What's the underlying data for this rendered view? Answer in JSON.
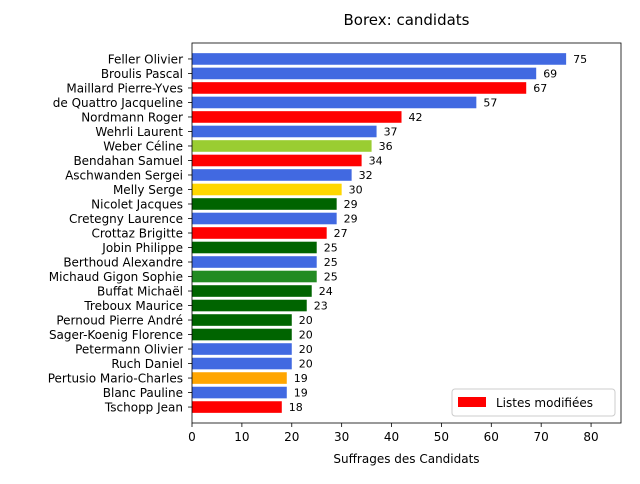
{
  "chart_data": {
    "type": "bar",
    "orientation": "horizontal",
    "title": "Borex: candidats",
    "xlabel": "Suffrages des Candidats",
    "ylabel": "",
    "xlim": [
      0,
      86
    ],
    "xticks": [
      0,
      10,
      20,
      30,
      40,
      50,
      60,
      70,
      80
    ],
    "grid": false,
    "legend": {
      "placement": "lower-right",
      "entries": [
        {
          "label": "Listes modifiées",
          "color": "#ff0000"
        }
      ]
    },
    "bars": [
      {
        "label": "Feller Olivier",
        "value": 75,
        "color": "#4169e1"
      },
      {
        "label": "Broulis Pascal",
        "value": 69,
        "color": "#4169e1"
      },
      {
        "label": "Maillard Pierre-Yves",
        "value": 67,
        "color": "#ff0000"
      },
      {
        "label": "de Quattro Jacqueline",
        "value": 57,
        "color": "#4169e1"
      },
      {
        "label": "Nordmann Roger",
        "value": 42,
        "color": "#ff0000"
      },
      {
        "label": "Wehrli Laurent",
        "value": 37,
        "color": "#4169e1"
      },
      {
        "label": "Weber Céline",
        "value": 36,
        "color": "#9acd32"
      },
      {
        "label": "Bendahan Samuel",
        "value": 34,
        "color": "#ff0000"
      },
      {
        "label": "Aschwanden Sergei",
        "value": 32,
        "color": "#4169e1"
      },
      {
        "label": "Melly Serge",
        "value": 30,
        "color": "#ffd700"
      },
      {
        "label": "Nicolet Jacques",
        "value": 29,
        "color": "#006400"
      },
      {
        "label": "Cretegny Laurence",
        "value": 29,
        "color": "#4169e1"
      },
      {
        "label": "Crottaz Brigitte",
        "value": 27,
        "color": "#ff0000"
      },
      {
        "label": "Jobin Philippe",
        "value": 25,
        "color": "#006400"
      },
      {
        "label": "Berthoud Alexandre",
        "value": 25,
        "color": "#4169e1"
      },
      {
        "label": "Michaud Gigon Sophie",
        "value": 25,
        "color": "#228b22"
      },
      {
        "label": "Buffat Michaël",
        "value": 24,
        "color": "#006400"
      },
      {
        "label": "Treboux Maurice",
        "value": 23,
        "color": "#006400"
      },
      {
        "label": "Pernoud Pierre André",
        "value": 20,
        "color": "#006400"
      },
      {
        "label": "Sager-Koenig Florence",
        "value": 20,
        "color": "#006400"
      },
      {
        "label": "Petermann Olivier",
        "value": 20,
        "color": "#4169e1"
      },
      {
        "label": "Ruch Daniel",
        "value": 20,
        "color": "#4169e1"
      },
      {
        "label": "Pertusio Mario-Charles",
        "value": 19,
        "color": "#ffa500"
      },
      {
        "label": "Blanc Pauline",
        "value": 19,
        "color": "#4169e1"
      },
      {
        "label": "Tschopp Jean",
        "value": 18,
        "color": "#ff0000"
      }
    ]
  }
}
